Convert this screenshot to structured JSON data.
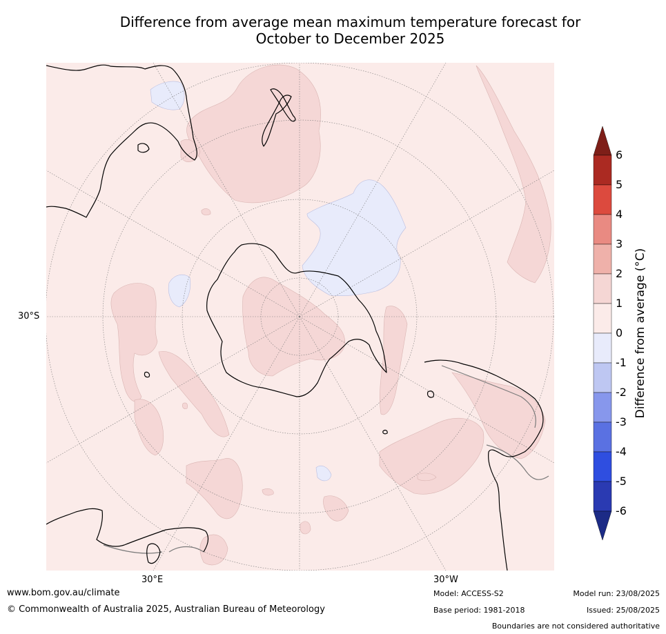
{
  "title": {
    "line1": "Difference from average mean maximum temperature forecast for",
    "line2": "October to December 2025"
  },
  "map": {
    "projection": "south-polar-stereographic",
    "grid_labels": {
      "lat": "30°S",
      "lon_left": "30°E",
      "lon_right": "30°W"
    },
    "colors": {
      "ocean_fill": "#fbebe9",
      "warm_1_2": "#f5d7d6",
      "cool_0_m1": "#e8ebfb",
      "coast": "#000000",
      "border": "#7a7a7a"
    }
  },
  "chart_data": {
    "type": "heatmap",
    "colorbar": {
      "label": "Difference from average (°C)",
      "ticks": [
        "6",
        "5",
        "4",
        "3",
        "2",
        "1",
        "0",
        "-1",
        "-2",
        "-3",
        "-4",
        "-5",
        "-6"
      ],
      "bins": [
        {
          "from": 6,
          "to": null,
          "color": "#7e1e18"
        },
        {
          "from": 5,
          "to": 6,
          "color": "#ab2a22"
        },
        {
          "from": 4,
          "to": 5,
          "color": "#dc4a3e"
        },
        {
          "from": 3,
          "to": 4,
          "color": "#e98a82"
        },
        {
          "from": 2,
          "to": 3,
          "color": "#efb1aa"
        },
        {
          "from": 1,
          "to": 2,
          "color": "#f5d6d4"
        },
        {
          "from": 0,
          "to": 1,
          "color": "#fbebe9"
        },
        {
          "from": -1,
          "to": 0,
          "color": "#e8ebfb"
        },
        {
          "from": -2,
          "to": -1,
          "color": "#bec7f2"
        },
        {
          "from": -3,
          "to": -2,
          "color": "#8797ec"
        },
        {
          "from": -4,
          "to": -3,
          "color": "#5a71e2"
        },
        {
          "from": -5,
          "to": -4,
          "color": "#2f4ee0"
        },
        {
          "from": -6,
          "to": -5,
          "color": "#2a3ab2"
        },
        {
          "from": null,
          "to": -6,
          "color": "#1c2b86"
        }
      ]
    }
  },
  "footer": {
    "url": "www.bom.gov.au/climate",
    "copyright": "© Commonwealth of Australia 2025, Australian Bureau of Meteorology",
    "model": "Model: ACCESS-S2",
    "base_period": "Base period: 1981-2018",
    "model_run": "Model run: 23/08/2025",
    "issued": "Issued: 25/08/2025",
    "disclaimer": "Boundaries are not considered authoritative"
  }
}
